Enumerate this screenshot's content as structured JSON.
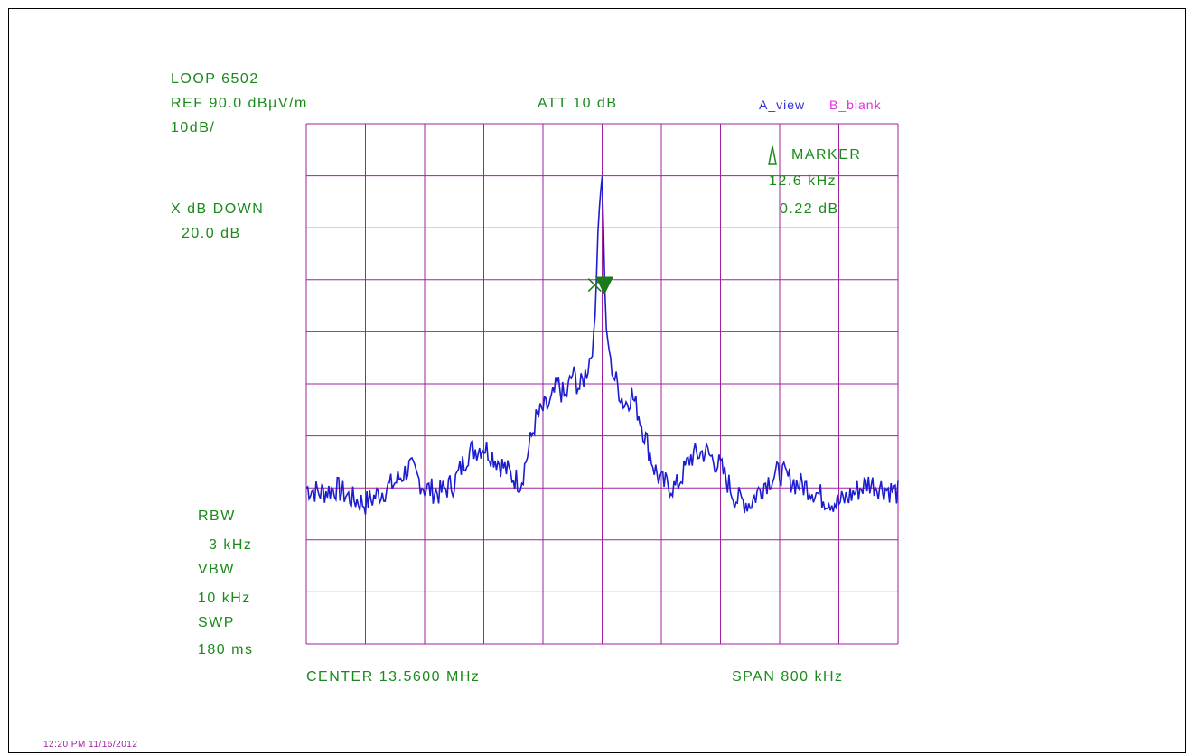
{
  "header": {
    "title": "LOOP 6502",
    "ref_level": "REF 90.0 dBµV/m",
    "scale": "10dB/",
    "attenuation": "ATT 10 dB"
  },
  "legend": {
    "trace_a": "A_view",
    "trace_b": "B_blank"
  },
  "x_db_down": {
    "label": "X dB DOWN",
    "value": "20.0 dB"
  },
  "marker": {
    "label": "MARKER",
    "freq": "12.6 kHz",
    "level": "0.22 dB"
  },
  "settings": {
    "rbw_label": "RBW",
    "rbw_value": "3 kHz",
    "vbw_label": "VBW",
    "vbw_value": "10 kHz",
    "swp_label": "SWP",
    "swp_value": "180 ms"
  },
  "footer": {
    "center": "CENTER 13.5600 MHz",
    "span": "SPAN 800 kHz"
  },
  "timestamp": "12:20 PM 11/16/2012",
  "colors": {
    "grid": "#a020a0",
    "trace": "#1c1cd0",
    "text": "#1a8a1a",
    "marker": "#1a7a1a"
  },
  "chart_data": {
    "type": "line",
    "x_unit": "kHz offset from center",
    "y_unit": "dBµV/m",
    "xlim": [
      -400,
      400
    ],
    "ylim": [
      -10,
      90
    ],
    "grid": true,
    "series": [
      {
        "name": "A_view",
        "x": [
          -400,
          -380,
          -360,
          -340,
          -320,
          -300,
          -280,
          -260,
          -240,
          -220,
          -200,
          -180,
          -160,
          -140,
          -120,
          -110,
          -100,
          -90,
          -80,
          -70,
          -60,
          -50,
          -40,
          -30,
          -20,
          -15,
          -10,
          -5,
          0,
          5,
          10,
          15,
          20,
          30,
          40,
          50,
          60,
          70,
          80,
          100,
          120,
          140,
          160,
          180,
          200,
          220,
          240,
          260,
          280,
          300,
          320,
          340,
          360,
          380,
          400
        ],
        "y": [
          20,
          19,
          20,
          18,
          17,
          19,
          21,
          24,
          20,
          19,
          21,
          27,
          28,
          25,
          22,
          21,
          27,
          33,
          35,
          36,
          40,
          37,
          42,
          39,
          43,
          46,
          51,
          72,
          80,
          51,
          46,
          42,
          40,
          36,
          38,
          34,
          29,
          24,
          21,
          20,
          26,
          27,
          24,
          18,
          17,
          21,
          23,
          21,
          20,
          18,
          17,
          19,
          21,
          20,
          19
        ]
      }
    ],
    "markers": [
      {
        "type": "delta",
        "x": 3,
        "y": 59
      },
      {
        "type": "cross",
        "x": -10,
        "y": 59
      }
    ]
  }
}
